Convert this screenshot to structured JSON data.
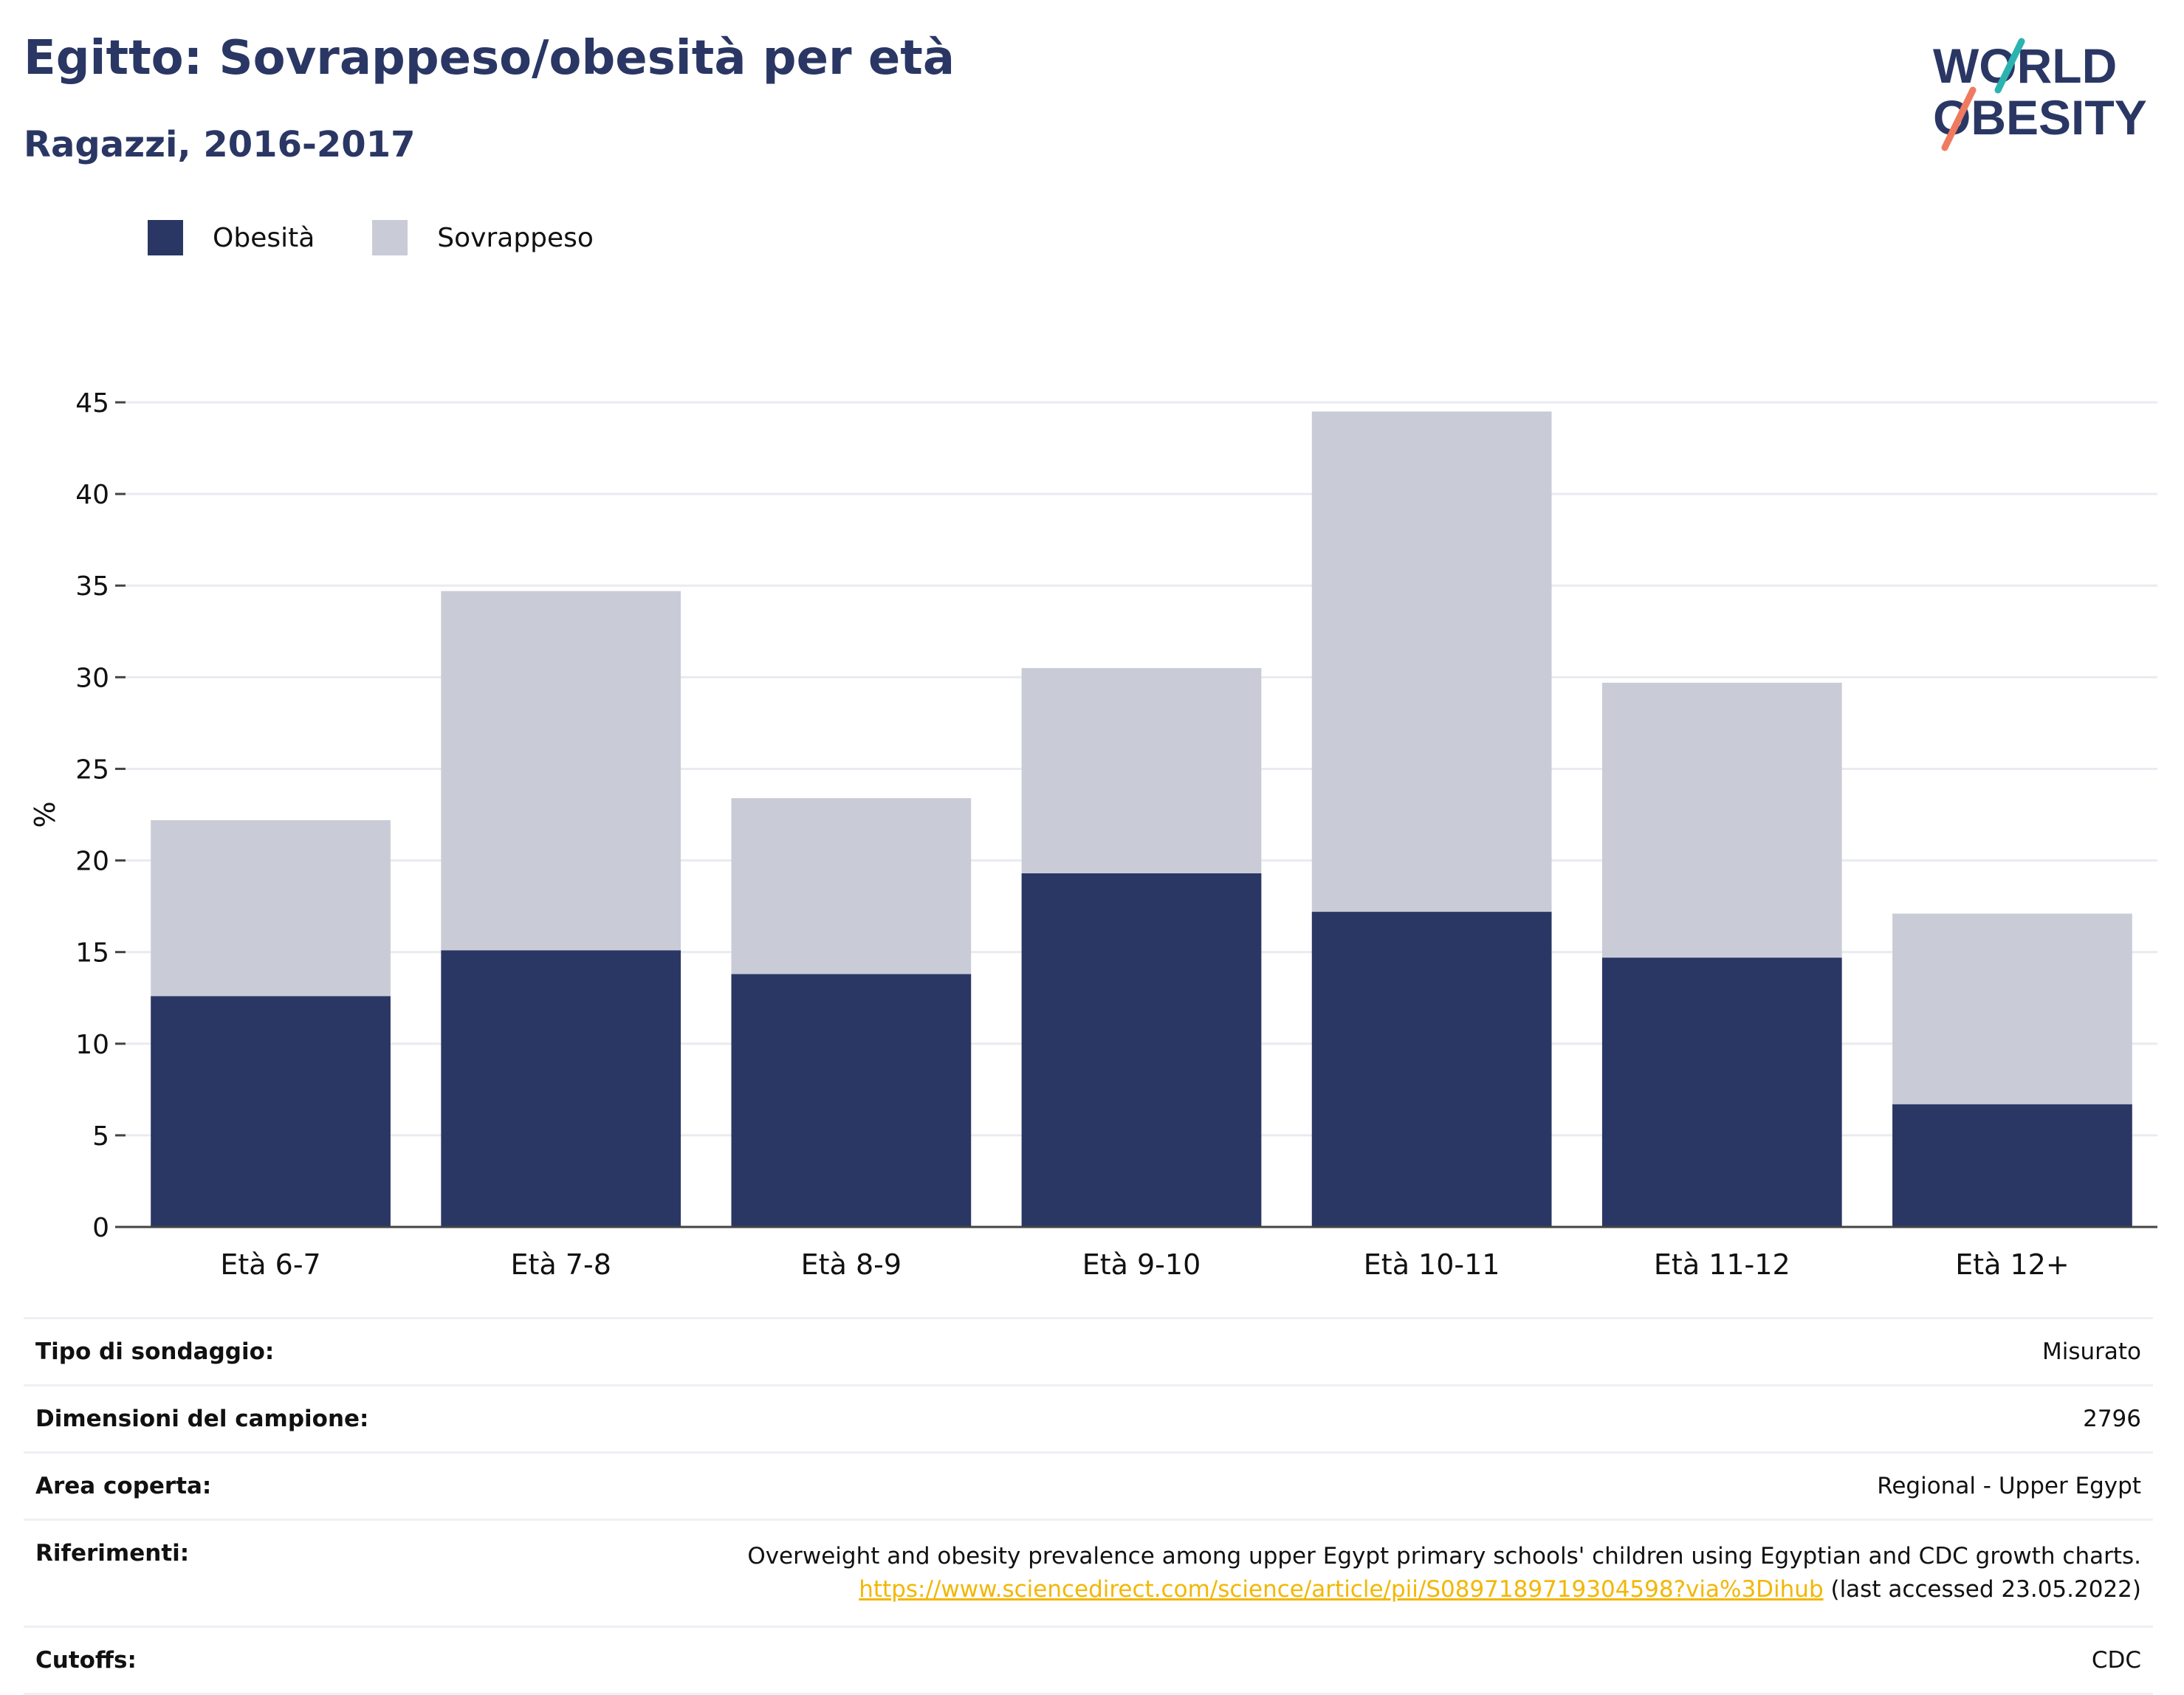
{
  "header": {
    "title": "Egitto: Sovrappeso/obesità per età",
    "subtitle": "Ragazzi, 2016-2017"
  },
  "logo": {
    "line1": "WORLD",
    "line2": "OBESITY",
    "accent_teal": "#2bb3b1",
    "accent_coral": "#f07a5f"
  },
  "legend": [
    {
      "label": "Obesità",
      "color": "#2a3764"
    },
    {
      "label": "Sovrappeso",
      "color": "#c9ccd7"
    }
  ],
  "chart_data": {
    "type": "bar",
    "stacked": true,
    "categories": [
      "Età 6-7",
      "Età 7-8",
      "Età 8-9",
      "Età 9-10",
      "Età 10-11",
      "Età 11-12",
      "Età 12+"
    ],
    "series": [
      {
        "name": "Obesità",
        "color": "#2a3764",
        "values": [
          12.6,
          15.1,
          13.8,
          19.3,
          17.2,
          14.7,
          6.7
        ]
      },
      {
        "name": "Sovrappeso",
        "color": "#c9ccd7",
        "values": [
          9.6,
          19.6,
          9.6,
          11.2,
          27.3,
          15.0,
          10.4
        ]
      }
    ],
    "ylabel": "%",
    "ylim": [
      0,
      45
    ],
    "yticks": [
      0,
      5,
      10,
      15,
      20,
      25,
      30,
      35,
      40,
      45
    ],
    "grid": true
  },
  "info": [
    {
      "label": "Tipo di sondaggio:",
      "value": "Misurato"
    },
    {
      "label": "Dimensioni del campione:",
      "value": "2796"
    },
    {
      "label": "Area coperta:",
      "value": "Regional - Upper Egypt"
    },
    {
      "label": "Riferimenti:",
      "value": "Overweight and obesity prevalence among upper Egypt primary schools' children using Egyptian and CDC growth charts.",
      "link": "https://www.sciencedirect.com/science/article/pii/S0897189719304598?via%3Dihub",
      "suffix": " (last accessed 23.05.2022)"
    },
    {
      "label": "Cutoffs:",
      "value": "CDC"
    }
  ]
}
